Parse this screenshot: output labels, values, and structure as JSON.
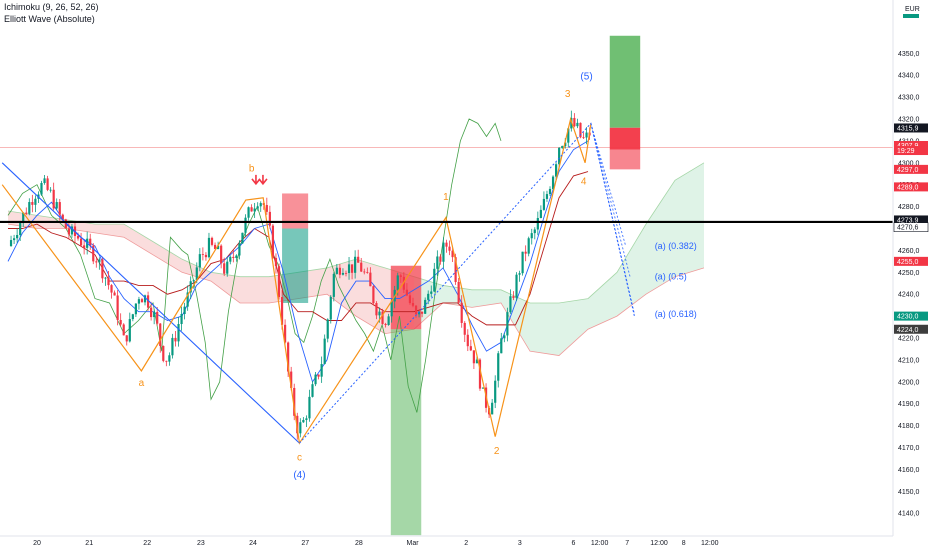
{
  "indicators": [
    "Ichimoku (9, 26, 52, 26)",
    "Elliott Wave (Absolute)"
  ],
  "currency": "EUR",
  "colors": {
    "up": "#089981",
    "down": "#f23645",
    "wave_orange": "#f7931a",
    "wave_blue": "#2962ff",
    "cloud_green": "#d7f0e1",
    "cloud_red": "#f9d4d4",
    "conversion": "#2962ff",
    "base": "#b71c1c",
    "lagging": "#43a047",
    "level_line": "#000000"
  },
  "chart_data": {
    "type": "candlestick",
    "title": "",
    "ylim": [
      4136,
      4362
    ],
    "y_ticks": [
      4140,
      4150,
      4160,
      4170,
      4180,
      4190,
      4200,
      4210,
      4220,
      4230,
      4240,
      4250,
      4260,
      4270,
      4280,
      4290,
      4300,
      4310,
      4320,
      4330,
      4340,
      4350
    ],
    "y_tick_labels": [
      "4140,0",
      "4150,0",
      "4160,0",
      "4170,0",
      "4180,0",
      "4190,0",
      "4200,0",
      "4210,0",
      "4220,0",
      "4230,0",
      "4240,0",
      "4250,0",
      "4260,0",
      "4270,0",
      "4280,0",
      "4290,0",
      "4300,0",
      "4310,0",
      "4320,0",
      "4330,0",
      "4340,0",
      "4350,0"
    ],
    "x_ticks": [
      {
        "label": "20",
        "t": 1.0
      },
      {
        "label": "21",
        "t": 2.8
      },
      {
        "label": "22",
        "t": 4.8
      },
      {
        "label": "23",
        "t": 6.65
      },
      {
        "label": "24",
        "t": 8.45
      },
      {
        "label": "27",
        "t": 10.25
      },
      {
        "label": "28",
        "t": 12.1
      },
      {
        "label": "Mar",
        "t": 13.95
      },
      {
        "label": "2",
        "t": 15.8
      },
      {
        "label": "3",
        "t": 17.65
      },
      {
        "label": "6",
        "t": 19.5
      },
      {
        "label": "12:00",
        "t": 20.4
      },
      {
        "label": "7",
        "t": 21.35
      },
      {
        "label": "12:00",
        "t": 22.45
      },
      {
        "label": "8",
        "t": 23.3
      },
      {
        "label": "12:00",
        "t": 24.2
      }
    ],
    "price_path": [
      [
        0.0,
        4262
      ],
      [
        0.3,
        4270
      ],
      [
        0.6,
        4278
      ],
      [
        0.9,
        4286
      ],
      [
        1.2,
        4290
      ],
      [
        1.5,
        4285
      ],
      [
        1.8,
        4275
      ],
      [
        2.1,
        4268
      ],
      [
        2.4,
        4266
      ],
      [
        2.7,
        4262
      ],
      [
        3.0,
        4258
      ],
      [
        3.3,
        4250
      ],
      [
        3.6,
        4240
      ],
      [
        3.8,
        4230
      ],
      [
        4.0,
        4218
      ],
      [
        4.2,
        4226
      ],
      [
        4.5,
        4240
      ],
      [
        4.8,
        4238
      ],
      [
        5.1,
        4228
      ],
      [
        5.3,
        4214
      ],
      [
        5.5,
        4210
      ],
      [
        5.7,
        4218
      ],
      [
        6.0,
        4232
      ],
      [
        6.3,
        4242
      ],
      [
        6.6,
        4256
      ],
      [
        6.9,
        4262
      ],
      [
        7.2,
        4260
      ],
      [
        7.5,
        4250
      ],
      [
        7.8,
        4258
      ],
      [
        8.1,
        4270
      ],
      [
        8.4,
        4280
      ],
      [
        8.6,
        4284
      ],
      [
        8.8,
        4282
      ],
      [
        9.0,
        4270
      ],
      [
        9.2,
        4255
      ],
      [
        9.4,
        4235
      ],
      [
        9.6,
        4210
      ],
      [
        9.8,
        4190
      ],
      [
        10.0,
        4178
      ],
      [
        10.2,
        4182
      ],
      [
        10.5,
        4196
      ],
      [
        10.8,
        4208
      ],
      [
        11.0,
        4226
      ],
      [
        11.2,
        4248
      ],
      [
        11.5,
        4254
      ],
      [
        11.8,
        4252
      ],
      [
        12.1,
        4254
      ],
      [
        12.4,
        4246
      ],
      [
        12.7,
        4234
      ],
      [
        13.0,
        4228
      ],
      [
        13.2,
        4236
      ],
      [
        13.5,
        4250
      ],
      [
        13.8,
        4238
      ],
      [
        14.1,
        4228
      ],
      [
        14.4,
        4236
      ],
      [
        14.7,
        4250
      ],
      [
        15.0,
        4260
      ],
      [
        15.2,
        4264
      ],
      [
        15.4,
        4252
      ],
      [
        15.6,
        4234
      ],
      [
        15.8,
        4220
      ],
      [
        16.0,
        4214
      ],
      [
        16.2,
        4206
      ],
      [
        16.4,
        4192
      ],
      [
        16.6,
        4188
      ],
      [
        16.8,
        4200
      ],
      [
        17.0,
        4218
      ],
      [
        17.3,
        4234
      ],
      [
        17.6,
        4250
      ],
      [
        17.9,
        4262
      ],
      [
        18.2,
        4270
      ],
      [
        18.5,
        4282
      ],
      [
        18.8,
        4296
      ],
      [
        19.0,
        4308
      ],
      [
        19.2,
        4312
      ],
      [
        19.4,
        4318
      ],
      [
        19.6,
        4316
      ],
      [
        19.8,
        4310
      ],
      [
        20.0,
        4312
      ],
      [
        20.1,
        4315
      ]
    ],
    "ichimoku": {
      "conversion": [
        [
          0.0,
          4255
        ],
        [
          0.5,
          4268
        ],
        [
          1.0,
          4276
        ],
        [
          1.5,
          4282
        ],
        [
          2.0,
          4272
        ],
        [
          2.5,
          4266
        ],
        [
          3.0,
          4262
        ],
        [
          3.5,
          4248
        ],
        [
          4.0,
          4238
        ],
        [
          4.5,
          4232
        ],
        [
          5.0,
          4232
        ],
        [
          5.5,
          4228
        ],
        [
          6.0,
          4230
        ],
        [
          6.5,
          4244
        ],
        [
          7.0,
          4250
        ],
        [
          7.5,
          4256
        ],
        [
          8.0,
          4262
        ],
        [
          8.5,
          4270
        ],
        [
          9.0,
          4272
        ],
        [
          9.5,
          4250
        ],
        [
          10.0,
          4222
        ],
        [
          10.5,
          4200
        ],
        [
          11.0,
          4210
        ],
        [
          11.5,
          4236
        ],
        [
          12.0,
          4246
        ],
        [
          12.5,
          4246
        ],
        [
          13.0,
          4238
        ],
        [
          13.5,
          4238
        ],
        [
          14.0,
          4242
        ],
        [
          14.5,
          4246
        ],
        [
          15.0,
          4252
        ],
        [
          15.5,
          4240
        ],
        [
          16.0,
          4226
        ],
        [
          16.5,
          4214
        ],
        [
          17.0,
          4218
        ],
        [
          17.5,
          4236
        ],
        [
          18.0,
          4254
        ],
        [
          18.5,
          4276
        ],
        [
          19.0,
          4296
        ],
        [
          19.5,
          4306
        ],
        [
          20.0,
          4310
        ]
      ],
      "base": [
        [
          0.0,
          4270
        ],
        [
          0.5,
          4270
        ],
        [
          1.0,
          4272
        ],
        [
          1.5,
          4268
        ],
        [
          2.0,
          4266
        ],
        [
          2.5,
          4262
        ],
        [
          3.0,
          4258
        ],
        [
          3.5,
          4246
        ],
        [
          4.0,
          4246
        ],
        [
          4.5,
          4244
        ],
        [
          5.0,
          4244
        ],
        [
          5.5,
          4240
        ],
        [
          6.0,
          4242
        ],
        [
          6.5,
          4246
        ],
        [
          7.0,
          4254
        ],
        [
          7.5,
          4256
        ],
        [
          8.0,
          4264
        ],
        [
          8.5,
          4270
        ],
        [
          9.0,
          4266
        ],
        [
          9.5,
          4240
        ],
        [
          10.0,
          4232
        ],
        [
          10.5,
          4232
        ],
        [
          11.0,
          4228
        ],
        [
          11.5,
          4228
        ],
        [
          12.0,
          4236
        ],
        [
          12.5,
          4236
        ],
        [
          13.0,
          4232
        ],
        [
          13.5,
          4232
        ],
        [
          14.0,
          4232
        ],
        [
          14.5,
          4234
        ],
        [
          15.0,
          4236
        ],
        [
          15.5,
          4236
        ],
        [
          16.0,
          4230
        ],
        [
          16.5,
          4226
        ],
        [
          17.0,
          4226
        ],
        [
          17.5,
          4226
        ],
        [
          18.0,
          4240
        ],
        [
          18.5,
          4262
        ],
        [
          19.0,
          4284
        ],
        [
          19.5,
          4294
        ],
        [
          20.0,
          4296
        ]
      ],
      "lagging": [
        [
          0.0,
          4276
        ],
        [
          0.5,
          4286
        ],
        [
          1.0,
          4290
        ],
        [
          1.5,
          4276
        ],
        [
          2.0,
          4270
        ],
        [
          2.5,
          4258
        ],
        [
          3.0,
          4238
        ],
        [
          3.5,
          4236
        ],
        [
          4.0,
          4222
        ],
        [
          4.5,
          4228
        ],
        [
          5.0,
          4236
        ],
        [
          5.3,
          4214
        ],
        [
          5.6,
          4266
        ],
        [
          6.0,
          4260
        ],
        [
          6.2,
          4258
        ],
        [
          6.5,
          4240
        ],
        [
          6.8,
          4218
        ],
        [
          7.0,
          4192
        ],
        [
          7.3,
          4200
        ],
        [
          7.6,
          4232
        ],
        [
          8.0,
          4262
        ],
        [
          8.3,
          4272
        ],
        [
          8.6,
          4280
        ],
        [
          9.0,
          4262
        ],
        [
          9.3,
          4254
        ],
        [
          9.6,
          4240
        ],
        [
          9.9,
          4222
        ],
        [
          10.2,
          4218
        ],
        [
          10.5,
          4230
        ],
        [
          10.8,
          4246
        ],
        [
          11.1,
          4256
        ],
        [
          11.4,
          4244
        ],
        [
          11.7,
          4236
        ],
        [
          12.0,
          4228
        ],
        [
          12.3,
          4222
        ],
        [
          12.6,
          4214
        ],
        [
          12.9,
          4226
        ],
        [
          13.2,
          4210
        ],
        [
          13.5,
          4230
        ],
        [
          13.8,
          4198
        ],
        [
          14.1,
          4186
        ],
        [
          14.4,
          4210
        ],
        [
          14.7,
          4238
        ],
        [
          15.0,
          4264
        ],
        [
          15.3,
          4290
        ],
        [
          15.6,
          4310
        ],
        [
          15.9,
          4320
        ],
        [
          16.2,
          4318
        ],
        [
          16.5,
          4312
        ],
        [
          16.8,
          4318
        ],
        [
          17.0,
          4310
        ]
      ],
      "cloud": [
        [
          0.0,
          4278,
          4272
        ],
        [
          1.0,
          4276,
          4270
        ],
        [
          2.0,
          4274,
          4270
        ],
        [
          3.0,
          4272,
          4268
        ],
        [
          4.0,
          4272,
          4266
        ],
        [
          5.0,
          4264,
          4258
        ],
        [
          6.0,
          4256,
          4250
        ],
        [
          7.0,
          4250,
          4246
        ],
        [
          8.0,
          4248,
          4236
        ],
        [
          9.0,
          4248,
          4236
        ],
        [
          10.0,
          4250,
          4238
        ],
        [
          11.0,
          4252,
          4240
        ],
        [
          12.0,
          4256,
          4230
        ],
        [
          13.0,
          4252,
          4222
        ],
        [
          14.0,
          4248,
          4224
        ],
        [
          15.0,
          4244,
          4236
        ],
        [
          16.0,
          4242,
          4234
        ],
        [
          17.0,
          4242,
          4236
        ],
        [
          18.0,
          4236,
          4214
        ],
        [
          19.0,
          4236,
          4212
        ],
        [
          20.0,
          4238,
          4224
        ],
        [
          21.0,
          4250,
          4230
        ],
        [
          22.0,
          4272,
          4240
        ],
        [
          23.0,
          4292,
          4248
        ],
        [
          24.0,
          4300,
          4252
        ]
      ]
    },
    "waves": [
      {
        "name": "a",
        "t": 4.6,
        "price": 4198
      },
      {
        "name": "b",
        "t": 8.4,
        "price": 4296
      },
      {
        "name": "c",
        "t": 10.05,
        "price": 4164
      },
      {
        "name": "(4)",
        "t": 10.05,
        "price": 4156
      },
      {
        "name": "1",
        "t": 15.1,
        "price": 4283
      },
      {
        "name": "2",
        "t": 16.85,
        "price": 4167
      },
      {
        "name": "3",
        "t": 19.3,
        "price": 4330
      },
      {
        "name": "(5)",
        "t": 19.95,
        "price": 4338
      },
      {
        "name": "4",
        "t": 19.85,
        "price": 4290
      }
    ],
    "wave_paths": {
      "orange": [
        [
          -0.2,
          4290
        ],
        [
          4.6,
          4205
        ],
        [
          8.2,
          4283
        ],
        [
          8.8,
          4284
        ],
        [
          10.05,
          4172
        ],
        [
          15.1,
          4275
        ],
        [
          16.8,
          4175
        ],
        [
          19.4,
          4320
        ],
        [
          19.9,
          4300
        ],
        [
          20.1,
          4318
        ]
      ],
      "blue": [
        [
          -0.2,
          4300
        ],
        [
          10.05,
          4172
        ]
      ],
      "blue_dotted": [
        [
          10.05,
          4172
        ],
        [
          20.1,
          4318
        ],
        [
          21.6,
          4230
        ]
      ]
    },
    "fib_labels": [
      {
        "text": "(a) (0.382)",
        "price": 4262
      },
      {
        "text": "(a) (0.5)",
        "price": 4248
      },
      {
        "text": "(a) (0.618)",
        "price": 4231
      }
    ],
    "level_line_price": 4273,
    "current_price": 4307,
    "price_labels": [
      {
        "text": "4315,9",
        "price": 4315.9,
        "bg": "#131722",
        "fg": "#ffffff"
      },
      {
        "text": "4307,9",
        "price": 4307.9,
        "bg": "#f23645",
        "fg": "#ffffff"
      },
      {
        "text": "19:29",
        "price": 4305.6,
        "bg": "#f23645",
        "fg": "#ffffff"
      },
      {
        "text": "4297,0",
        "price": 4297.0,
        "bg": "#f23645",
        "fg": "#ffffff"
      },
      {
        "text": "4289,0",
        "price": 4289.0,
        "bg": "#f23645",
        "fg": "#ffffff"
      },
      {
        "text": "4273,9",
        "price": 4273.9,
        "bg": "#131722",
        "fg": "#ffffff"
      },
      {
        "text": "4270,6",
        "price": 4270.6,
        "bg": "#ffffff",
        "fg": "#131722"
      },
      {
        "text": "4255,0",
        "price": 4255.0,
        "bg": "#f23645",
        "fg": "#ffffff"
      },
      {
        "text": "4230,0",
        "price": 4230.0,
        "bg": "#089981",
        "fg": "#ffffff"
      },
      {
        "text": "4224,0",
        "price": 4224.0,
        "bg": "#3d3d3d",
        "fg": "#ffffff"
      }
    ],
    "boxes": [
      {
        "name": "red-box-1",
        "t0": 9.45,
        "t1": 10.35,
        "p0": 4286,
        "p1": 4270,
        "fill": "#f23645",
        "opacity": 0.55
      },
      {
        "name": "green-box-1",
        "t0": 9.45,
        "t1": 10.35,
        "p0": 4270,
        "p1": 4236,
        "fill": "#089981",
        "opacity": 0.55
      },
      {
        "name": "red-box-2",
        "t0": 13.2,
        "t1": 14.25,
        "p0": 4253,
        "p1": 4224,
        "fill": "#f23645",
        "opacity": 0.7
      },
      {
        "name": "green-box-2",
        "t0": 13.2,
        "t1": 14.25,
        "p0": 4224,
        "p1": 4130,
        "fill": "#4caf50",
        "opacity": 0.5
      },
      {
        "name": "green-box-3",
        "t0": 20.75,
        "t1": 21.8,
        "p0": 4358,
        "p1": 4316,
        "fill": "#4caf50",
        "opacity": 0.8
      },
      {
        "name": "red-box-3",
        "t0": 20.75,
        "t1": 21.8,
        "p0": 4316,
        "p1": 4306,
        "fill": "#f23645",
        "opacity": 0.95
      },
      {
        "name": "pink-box-3",
        "t0": 20.75,
        "t1": 21.8,
        "p0": 4306,
        "p1": 4297,
        "fill": "#f23645",
        "opacity": 0.6
      }
    ],
    "markers": [
      {
        "name": "down-arrow",
        "t": 8.55,
        "price": 4289
      }
    ]
  }
}
